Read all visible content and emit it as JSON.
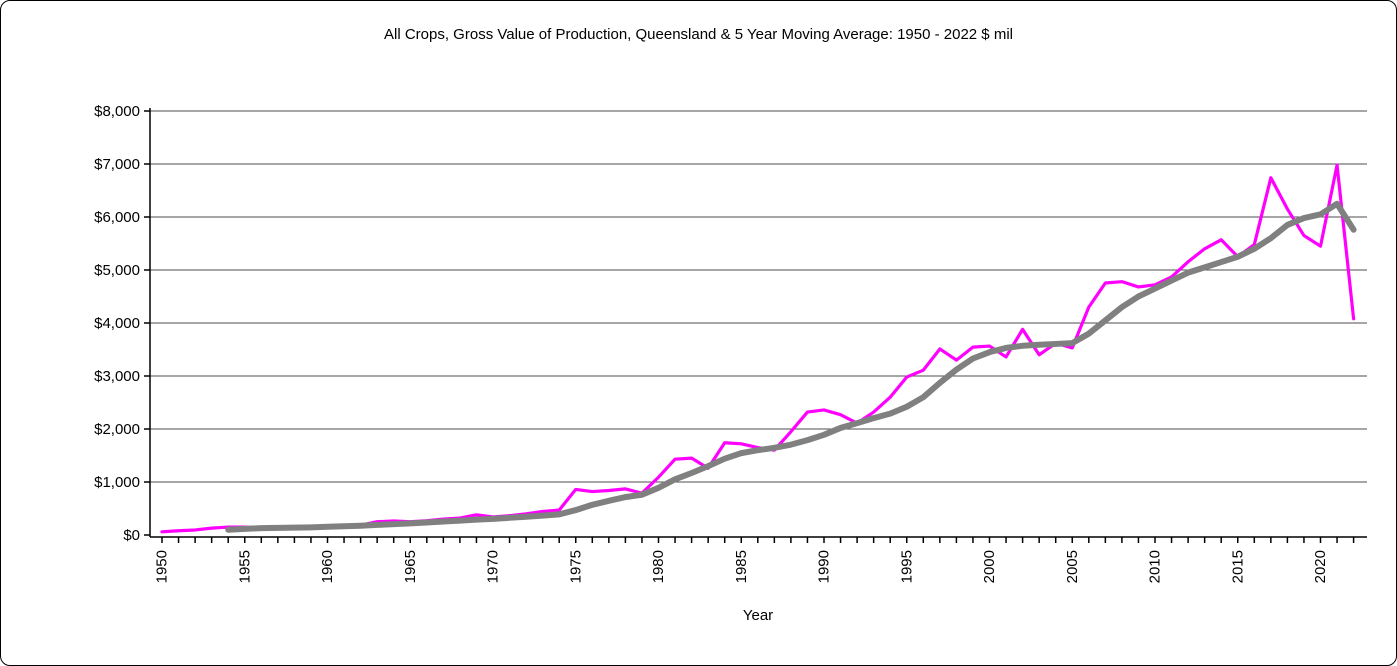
{
  "window": {
    "background": "#ffffff",
    "border_color": "#000000"
  },
  "chart": {
    "title": "All Crops, Gross Value of Production, Queensland & 5 Year Moving Average: 1950 - 2022 $ mil",
    "x_axis_label": "Year"
  },
  "chart_data": {
    "type": "line",
    "title": "All Crops, Gross Value of Production, Queensland & 5 Year Moving Average: 1950 - 2022 $ mil",
    "xlabel": "Year",
    "ylabel": "",
    "x_range": [
      1950,
      2022
    ],
    "ylim": [
      0,
      8000
    ],
    "y_tick_interval": 1000,
    "y_tick_labels": [
      "$0",
      "$1,000",
      "$2,000",
      "$3,000",
      "$4,000",
      "$5,000",
      "$6,000",
      "$7,000",
      "$8,000"
    ],
    "x_tick_years": [
      1950,
      1955,
      1960,
      1965,
      1970,
      1975,
      1980,
      1985,
      1990,
      1995,
      2000,
      2005,
      2010,
      2015,
      2020
    ],
    "x_minor_tick_every_year": true,
    "grid": "horizontal",
    "gridline_color": "#4d4d4d",
    "legend": "none",
    "series": [
      {
        "name": "All Crops Gross Value of Production",
        "color": "#FF00FF",
        "stroke_width": 3.2,
        "start_year": 1950,
        "values": [
          60,
          80,
          95,
          130,
          150,
          150,
          130,
          135,
          140,
          150,
          165,
          175,
          185,
          250,
          265,
          250,
          270,
          300,
          320,
          380,
          340,
          365,
          400,
          445,
          470,
          860,
          820,
          840,
          870,
          790,
          1090,
          1430,
          1450,
          1260,
          1740,
          1720,
          1650,
          1600,
          1950,
          2320,
          2360,
          2270,
          2110,
          2320,
          2600,
          2980,
          3110,
          3510,
          3300,
          3545,
          3565,
          3360,
          3880,
          3400,
          3620,
          3530,
          4300,
          4755,
          4780,
          4680,
          4720,
          4870,
          5155,
          5400,
          5570,
          5250,
          5480,
          6740,
          6150,
          5650,
          5450,
          6980,
          4080
        ]
      },
      {
        "name": "5 Year Moving Average",
        "color": "#808080",
        "stroke_width": 6,
        "start_year": 1954,
        "values": [
          100,
          115,
          130,
          135,
          140,
          145,
          155,
          165,
          175,
          190,
          205,
          220,
          235,
          255,
          270,
          290,
          305,
          325,
          345,
          365,
          390,
          470,
          570,
          645,
          715,
          760,
          890,
          1050,
          1170,
          1300,
          1440,
          1545,
          1600,
          1645,
          1705,
          1790,
          1890,
          2020,
          2110,
          2205,
          2290,
          2420,
          2600,
          2870,
          3120,
          3330,
          3450,
          3530,
          3570,
          3590,
          3605,
          3620,
          3800,
          4050,
          4300,
          4500,
          4650,
          4800,
          4950,
          5050,
          5150,
          5250,
          5400,
          5600,
          5850,
          5980,
          6050,
          6250,
          5760
        ]
      }
    ]
  }
}
